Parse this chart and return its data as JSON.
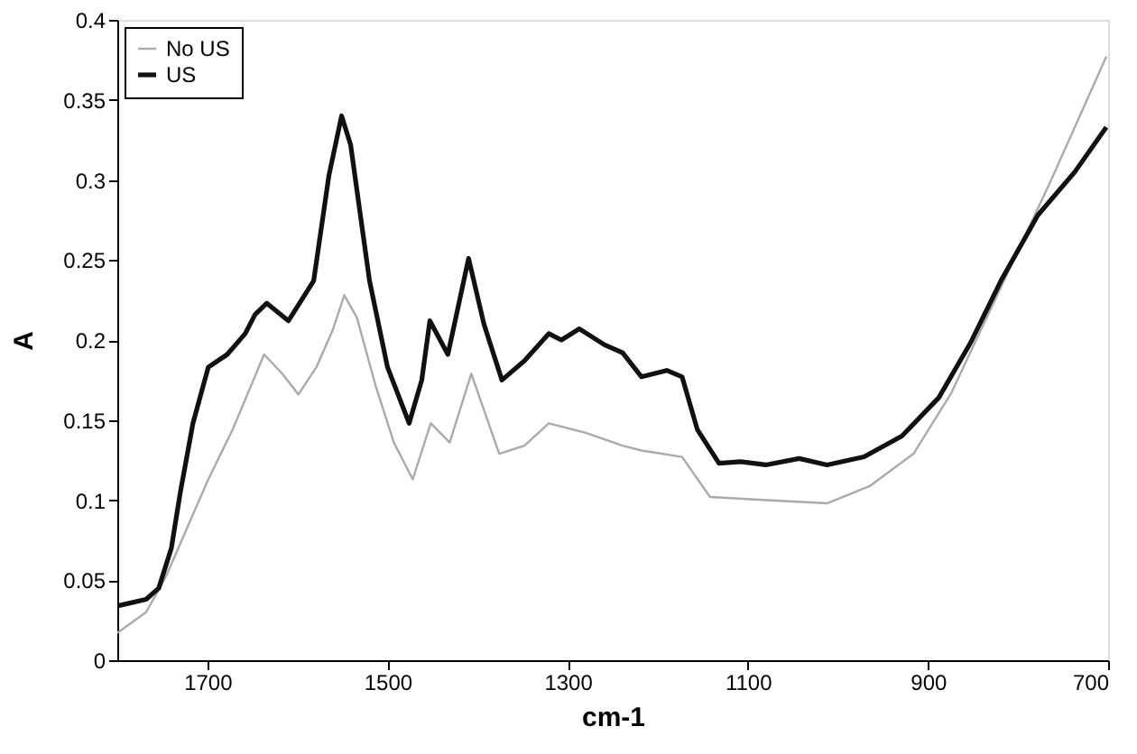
{
  "chart_data": {
    "type": "line",
    "xlabel": "cm-1",
    "ylabel": "A",
    "xlim": [
      1800,
      700
    ],
    "xticks": [
      1700,
      1500,
      1300,
      1100,
      900,
      700
    ],
    "ylim": [
      0,
      0.4
    ],
    "yticks": [
      0,
      0.05,
      0.1,
      0.15,
      0.2,
      0.25,
      0.3,
      0.35,
      0.4
    ],
    "grid": false,
    "legend": "top left",
    "line_style": "solid",
    "series": [
      {
        "name": "No US",
        "color": "#aaaaaa",
        "x": [
          1800,
          1768,
          1747,
          1723,
          1699,
          1672,
          1637,
          1617,
          1599,
          1579,
          1561,
          1548,
          1534,
          1513,
          1493,
          1472,
          1452,
          1431,
          1407,
          1376,
          1348,
          1321,
          1280,
          1239,
          1218,
          1173,
          1142,
          1080,
          1012,
          964,
          916,
          874,
          819,
          764,
          702
        ],
        "values": [
          0.017,
          0.03,
          0.051,
          0.082,
          0.113,
          0.144,
          0.191,
          0.179,
          0.166,
          0.183,
          0.206,
          0.228,
          0.214,
          0.171,
          0.136,
          0.113,
          0.148,
          0.136,
          0.179,
          0.129,
          0.134,
          0.148,
          0.142,
          0.134,
          0.131,
          0.127,
          0.102,
          0.1,
          0.098,
          0.109,
          0.129,
          0.167,
          0.233,
          0.299,
          0.377
        ]
      },
      {
        "name": "US",
        "color": "#111111",
        "x": [
          1799,
          1768,
          1754,
          1740,
          1730,
          1716,
          1699,
          1678,
          1658,
          1647,
          1634,
          1610,
          1582,
          1565,
          1551,
          1541,
          1520,
          1500,
          1476,
          1462,
          1453,
          1433,
          1410,
          1393,
          1373,
          1348,
          1321,
          1307,
          1287,
          1259,
          1239,
          1218,
          1190,
          1173,
          1156,
          1132,
          1108,
          1080,
          1043,
          1012,
          971,
          929,
          888,
          853,
          819,
          778,
          737,
          702
        ],
        "values": [
          0.034,
          0.038,
          0.045,
          0.07,
          0.105,
          0.148,
          0.183,
          0.191,
          0.204,
          0.216,
          0.223,
          0.212,
          0.237,
          0.303,
          0.34,
          0.322,
          0.237,
          0.183,
          0.148,
          0.175,
          0.212,
          0.191,
          0.251,
          0.21,
          0.175,
          0.187,
          0.204,
          0.2,
          0.207,
          0.197,
          0.192,
          0.177,
          0.181,
          0.177,
          0.144,
          0.123,
          0.124,
          0.122,
          0.126,
          0.122,
          0.127,
          0.14,
          0.164,
          0.198,
          0.237,
          0.278,
          0.305,
          0.333
        ]
      }
    ]
  }
}
